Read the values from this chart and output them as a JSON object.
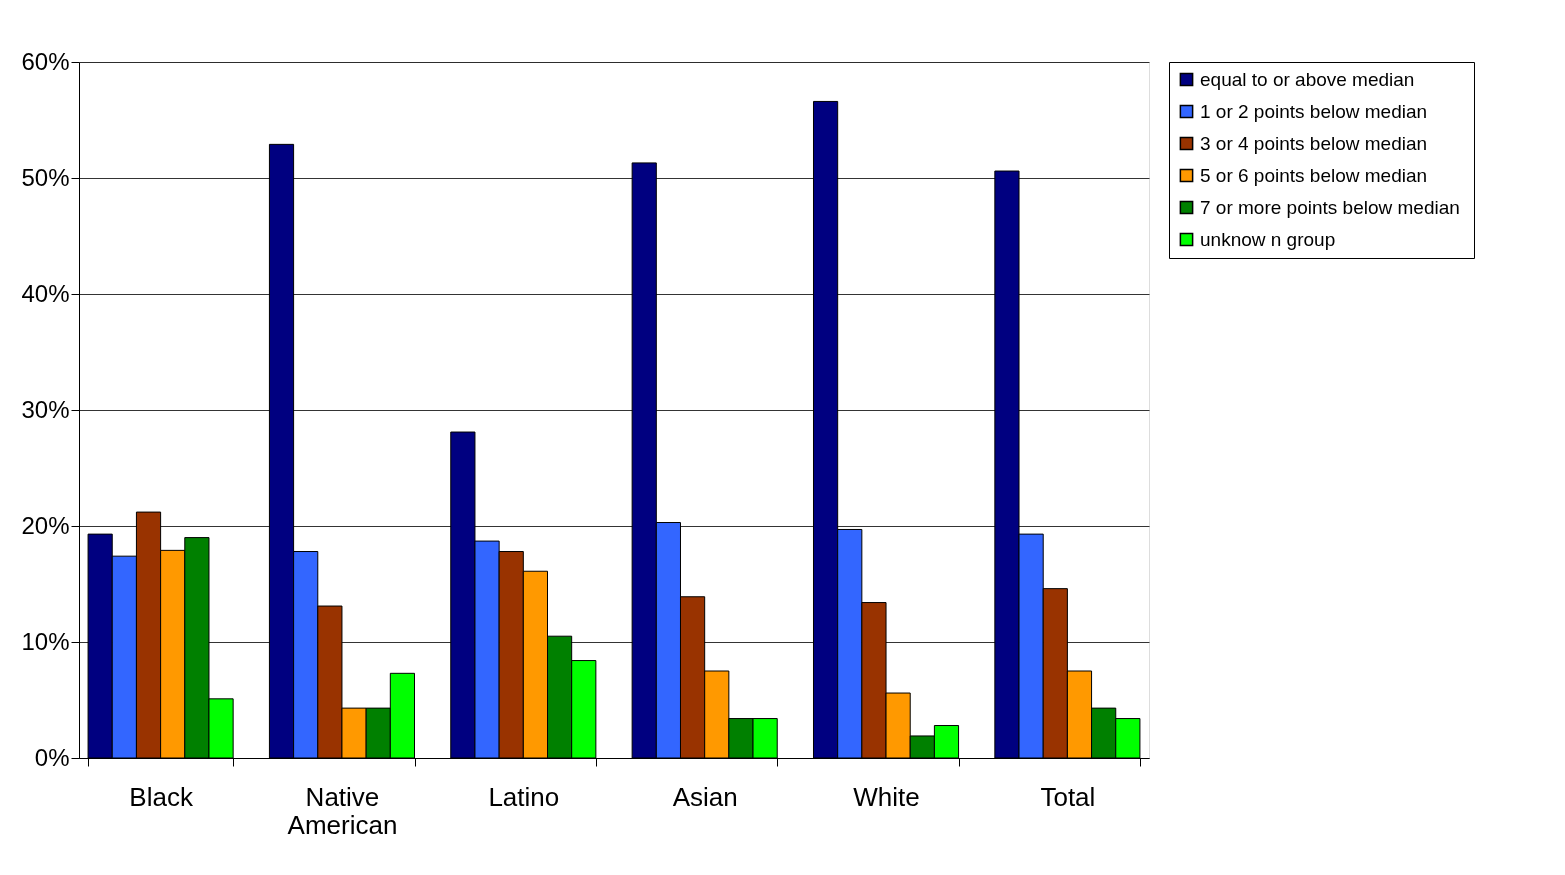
{
  "chart_data": {
    "type": "bar",
    "categories": [
      "Black",
      "Native American",
      "Latino",
      "Asian",
      "White",
      "Total"
    ],
    "series": [
      {
        "name": "equal to or above median",
        "color": "#000080",
        "values": [
          19.3,
          52.9,
          28.1,
          51.3,
          56.6,
          50.6
        ]
      },
      {
        "name": "1 or 2 points below  median",
        "color": "#3366ff",
        "values": [
          17.4,
          17.8,
          18.7,
          20.3,
          19.7,
          19.3
        ]
      },
      {
        "name": "3 or 4 points below  median",
        "color": "#993300",
        "values": [
          21.2,
          13.1,
          17.8,
          13.9,
          13.4,
          14.6
        ]
      },
      {
        "name": "5 or 6 points below  median",
        "color": "#ff9900",
        "values": [
          17.9,
          4.3,
          16.1,
          7.5,
          5.6,
          7.5
        ]
      },
      {
        "name": "7 or more points below  median",
        "color": "#008000",
        "values": [
          19.0,
          4.3,
          10.5,
          3.4,
          1.9,
          4.3
        ]
      },
      {
        "name": "unknow n group",
        "color": "#00ff00",
        "values": [
          5.1,
          7.3,
          8.4,
          3.4,
          2.8,
          3.4
        ]
      }
    ],
    "ylim": [
      0,
      60
    ],
    "yticks": [
      {
        "value": 0,
        "label": "0%"
      },
      {
        "value": 10,
        "label": "10%"
      },
      {
        "value": 20,
        "label": "20%"
      },
      {
        "value": 30,
        "label": "30%"
      },
      {
        "value": 40,
        "label": "40%"
      },
      {
        "value": 50,
        "label": "50%"
      },
      {
        "value": 60,
        "label": "60%"
      }
    ],
    "grid": "y",
    "legend": "right"
  }
}
